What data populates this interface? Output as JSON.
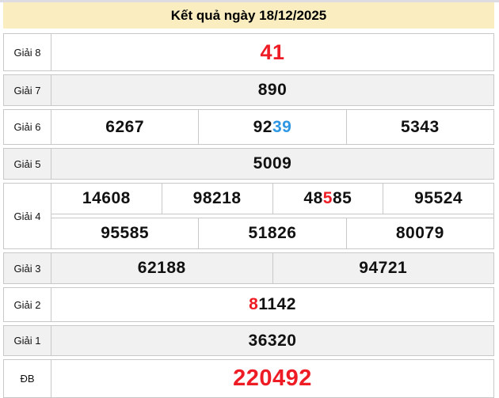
{
  "header": {
    "title": "Kết quả ngày 18/12/2025"
  },
  "colors": {
    "header_bg": "#FAEEC1",
    "alt_row_bg": "#F1F1F1",
    "border": "#C8C8C8",
    "number": "#111111",
    "red": "#EE1C25",
    "blue": "#2E97E3"
  },
  "table": {
    "rows": [
      {
        "id": "giai-8",
        "label": "Giải 8",
        "lines": [
          [
            [
              {
                "t": "41",
                "c": "red"
              }
            ]
          ]
        ]
      },
      {
        "id": "giai-7",
        "label": "Giải 7",
        "lines": [
          [
            [
              {
                "t": "890"
              }
            ]
          ]
        ]
      },
      {
        "id": "giai-6",
        "label": "Giải 6",
        "lines": [
          [
            [
              {
                "t": "6267"
              }
            ],
            [
              {
                "t": "92"
              },
              {
                "t": "39",
                "c": "blue"
              }
            ],
            [
              {
                "t": "5343"
              }
            ]
          ]
        ]
      },
      {
        "id": "giai-5",
        "label": "Giải 5",
        "lines": [
          [
            [
              {
                "t": "5009"
              }
            ]
          ]
        ]
      },
      {
        "id": "giai-4",
        "label": "Giải 4",
        "lines": [
          [
            [
              {
                "t": "14608"
              }
            ],
            [
              {
                "t": "98218"
              }
            ],
            [
              {
                "t": "48"
              },
              {
                "t": "5",
                "c": "red"
              },
              {
                "t": "85"
              }
            ],
            [
              {
                "t": "95524"
              }
            ]
          ],
          [
            [
              {
                "t": "95585"
              }
            ],
            [
              {
                "t": "51826"
              }
            ],
            [
              {
                "t": "80079"
              }
            ]
          ]
        ]
      },
      {
        "id": "giai-3",
        "label": "Giải 3",
        "lines": [
          [
            [
              {
                "t": "62188"
              }
            ],
            [
              {
                "t": "94721"
              }
            ]
          ]
        ]
      },
      {
        "id": "giai-2",
        "label": "Giải 2",
        "lines": [
          [
            [
              {
                "t": "8",
                "c": "red"
              },
              {
                "t": "1142"
              }
            ]
          ]
        ]
      },
      {
        "id": "giai-1",
        "label": "Giải 1",
        "lines": [
          [
            [
              {
                "t": "36320"
              }
            ]
          ]
        ]
      },
      {
        "id": "db",
        "label": "ĐB",
        "lines": [
          [
            [
              {
                "t": "220492",
                "c": "red"
              }
            ]
          ]
        ]
      }
    ]
  }
}
